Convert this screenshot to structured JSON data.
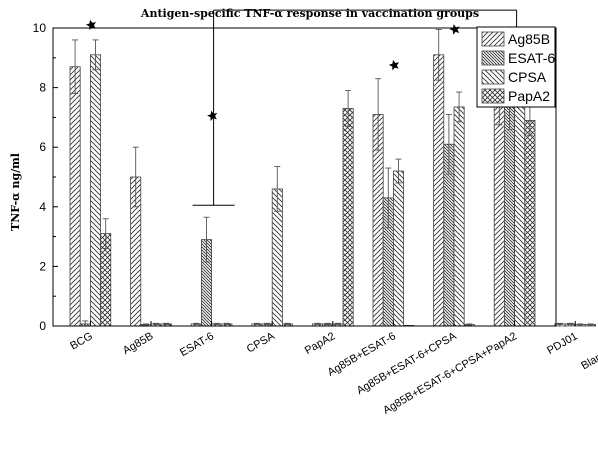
{
  "chart_data": {
    "type": "bar",
    "title": "Antigen-specific TNF-α response in vaccination groups",
    "ylabel": "TNF-α ng/ml",
    "xlabel": "",
    "ylim": [
      0,
      10
    ],
    "yticks": [
      "0",
      "2",
      "4",
      "6",
      "8",
      "10"
    ],
    "legend_position": "top-right",
    "categories": [
      "BCG",
      "Ag85B",
      "ESAT-6",
      "CPSA",
      "PapA2",
      "Ag85B+ESAT-6",
      "Ag85B+ESAT-6+CPSA",
      "Ag85B+ESAT-6+CPSA+PapA2",
      "PDJ01",
      "Blank control"
    ],
    "series": [
      {
        "name": "Ag85B",
        "pattern": "forward-diagonal",
        "values": [
          8.7,
          5.0,
          0.07,
          0.07,
          0.07,
          7.1,
          9.1,
          7.95,
          0.07,
          0.0
        ],
        "errors": [
          0.9,
          1.0,
          0.02,
          0.02,
          0.02,
          1.2,
          0.85,
          1.2,
          0.02,
          0.0
        ]
      },
      {
        "name": "ESAT-6",
        "pattern": "dense-backward-diagonal",
        "values": [
          0.07,
          0.05,
          2.9,
          0.07,
          0.07,
          4.3,
          6.1,
          7.65,
          0.07,
          0.05
        ],
        "errors": [
          0.1,
          0.02,
          0.75,
          0.02,
          0.02,
          1.0,
          1.0,
          1.05,
          0.02,
          0.02
        ]
      },
      {
        "name": "CPSA",
        "pattern": "backward-diagonal",
        "values": [
          9.1,
          0.07,
          0.07,
          4.6,
          0.07,
          5.2,
          7.35,
          8.0,
          0.05,
          0.0
        ],
        "errors": [
          0.5,
          0.02,
          0.02,
          0.75,
          0.02,
          0.4,
          0.5,
          0.45,
          0.02,
          0.0
        ]
      },
      {
        "name": "PapA2",
        "pattern": "crosshatch",
        "values": [
          3.1,
          0.07,
          0.07,
          0.07,
          7.3,
          0.0,
          0.05,
          6.9,
          0.05,
          0.05
        ],
        "errors": [
          0.5,
          0.02,
          0.02,
          0.02,
          0.6,
          0.0,
          0.02,
          0.5,
          0.02,
          0.02
        ]
      }
    ],
    "significance_marks": [
      {
        "category": "BCG",
        "y": 10.1
      },
      {
        "category": "ESAT-6",
        "y": 7.05
      },
      {
        "category": "Ag85B+ESAT-6",
        "y": 8.75
      },
      {
        "category": "Ag85B+ESAT-6+CPSA",
        "y": 9.95
      },
      {
        "category": "Ag85B+ESAT-6+CPSA+PapA2",
        "y": 9.35
      }
    ],
    "comparison_bracket": {
      "from": "ESAT-6",
      "to": "Ag85B+ESAT-6+CPSA+PapA2",
      "top_y": 10.6,
      "left_cap_y": 4.05,
      "right_cap_y": 9.7
    }
  }
}
